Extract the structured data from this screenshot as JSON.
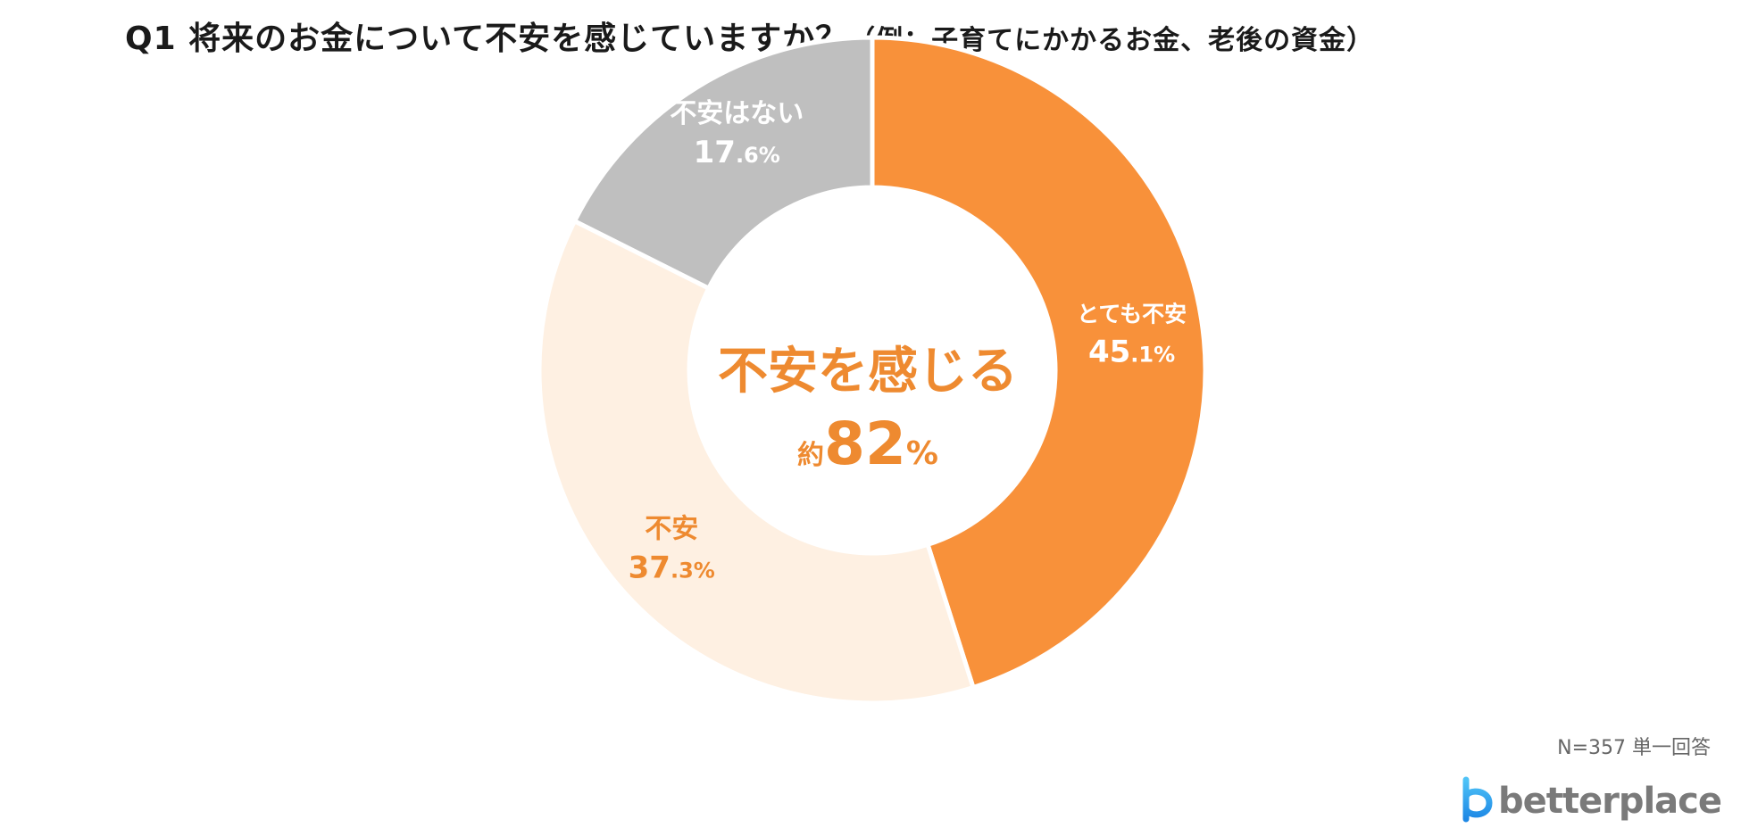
{
  "title": "Q1 将来のお金について不安を感じていますか？",
  "subtitle": "（例：子育てにかかるお金、老後の資金）",
  "chart_data": {
    "type": "pie",
    "variant": "donut",
    "slices": [
      {
        "label": "とても不安",
        "value": 45.1,
        "value_int": "45",
        "value_dec": ".1%",
        "color": "#F8913A",
        "text_color": "#ffffff"
      },
      {
        "label": "不安",
        "value": 37.3,
        "value_int": "37",
        "value_dec": ".3%",
        "color": "#FEF0E2",
        "text_color": "#EE8A30"
      },
      {
        "label": "不安はない",
        "value": 17.6,
        "value_int": "17",
        "value_dec": ".6%",
        "color": "#BFBFBF",
        "text_color": "#ffffff"
      }
    ],
    "center_label": "不安を感じる",
    "center_prefix": "約",
    "center_value": "82",
    "center_unit": "%",
    "center_color": "#EE8A30"
  },
  "footnote": "N=357 単一回答",
  "logo_text": "betterplace"
}
